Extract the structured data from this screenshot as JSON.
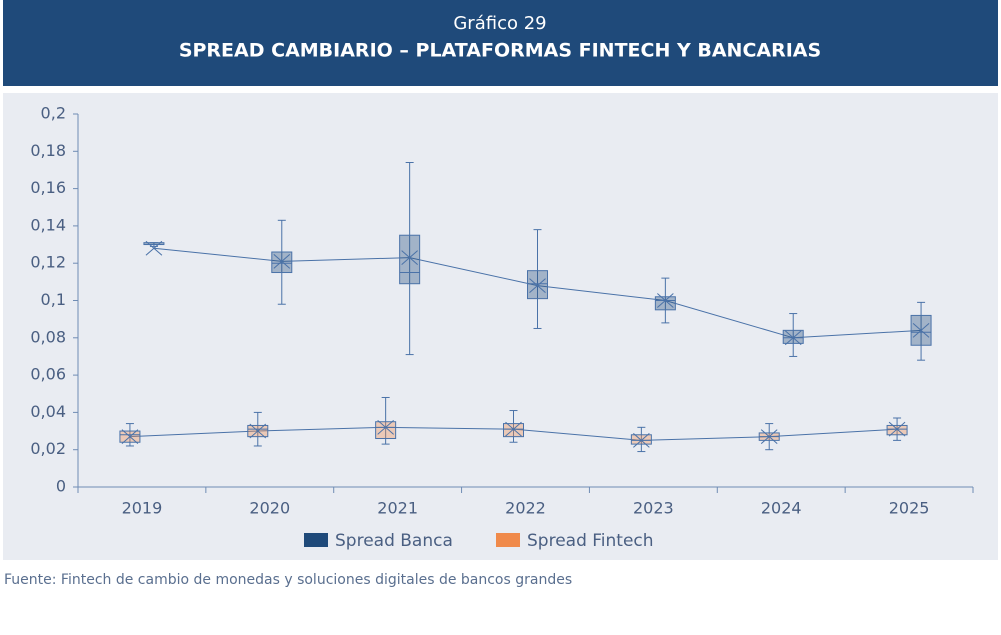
{
  "chart_data": {
    "type": "box",
    "subtitle": "Gráfico 29",
    "title": "SPREAD CAMBIARIO – PLATAFORMAS FINTECH Y BANCARIAS",
    "source": "Fuente: Fintech de cambio de monedas y soluciones digitales de bancos grandes",
    "categories": [
      "2019",
      "2020",
      "2021",
      "2022",
      "2023",
      "2024",
      "2025"
    ],
    "ylim": [
      0,
      0.2
    ],
    "yticks": [
      0,
      {
        "value": 0.02,
        "label": "0,02"
      },
      {
        "value": 0.04,
        "label": "0,04"
      },
      {
        "value": 0.06,
        "label": "0,06"
      },
      {
        "value": 0.08,
        "label": "0,08"
      },
      {
        "value": 0.1,
        "label": "0,1"
      },
      {
        "value": 0.12,
        "label": "0,12"
      },
      {
        "value": 0.14,
        "label": "0,14"
      },
      {
        "value": 0.16,
        "label": "0,16"
      },
      {
        "value": 0.18,
        "label": "0,18"
      },
      {
        "value": 0.2,
        "label": "0,2"
      }
    ],
    "series": [
      {
        "name": "Spread Banca",
        "color": "#1f4a7a",
        "min": [
          0.129,
          0.098,
          0.071,
          0.085,
          0.088,
          0.07,
          0.068
        ],
        "q1": [
          0.13,
          0.115,
          0.109,
          0.101,
          0.095,
          0.077,
          0.076
        ],
        "median": [
          0.13,
          0.12,
          0.115,
          0.109,
          0.1,
          0.08,
          0.083
        ],
        "q3": [
          0.131,
          0.126,
          0.135,
          0.116,
          0.102,
          0.084,
          0.092
        ],
        "max": [
          0.131,
          0.143,
          0.174,
          0.138,
          0.112,
          0.093,
          0.099
        ],
        "mean": [
          0.128,
          0.121,
          0.123,
          0.108,
          0.1,
          0.08,
          0.084
        ]
      },
      {
        "name": "Spread Fintech",
        "color": "#f08a4b",
        "min": [
          0.022,
          0.022,
          0.023,
          0.024,
          0.019,
          0.02,
          0.025
        ],
        "q1": [
          0.024,
          0.027,
          0.026,
          0.027,
          0.023,
          0.025,
          0.028
        ],
        "median": [
          0.028,
          0.031,
          0.032,
          0.031,
          0.025,
          0.027,
          0.031
        ],
        "q3": [
          0.03,
          0.033,
          0.035,
          0.034,
          0.028,
          0.029,
          0.033
        ],
        "max": [
          0.034,
          0.04,
          0.048,
          0.041,
          0.032,
          0.034,
          0.037
        ],
        "mean": [
          0.027,
          0.03,
          0.032,
          0.031,
          0.025,
          0.027,
          0.031
        ]
      }
    ]
  }
}
